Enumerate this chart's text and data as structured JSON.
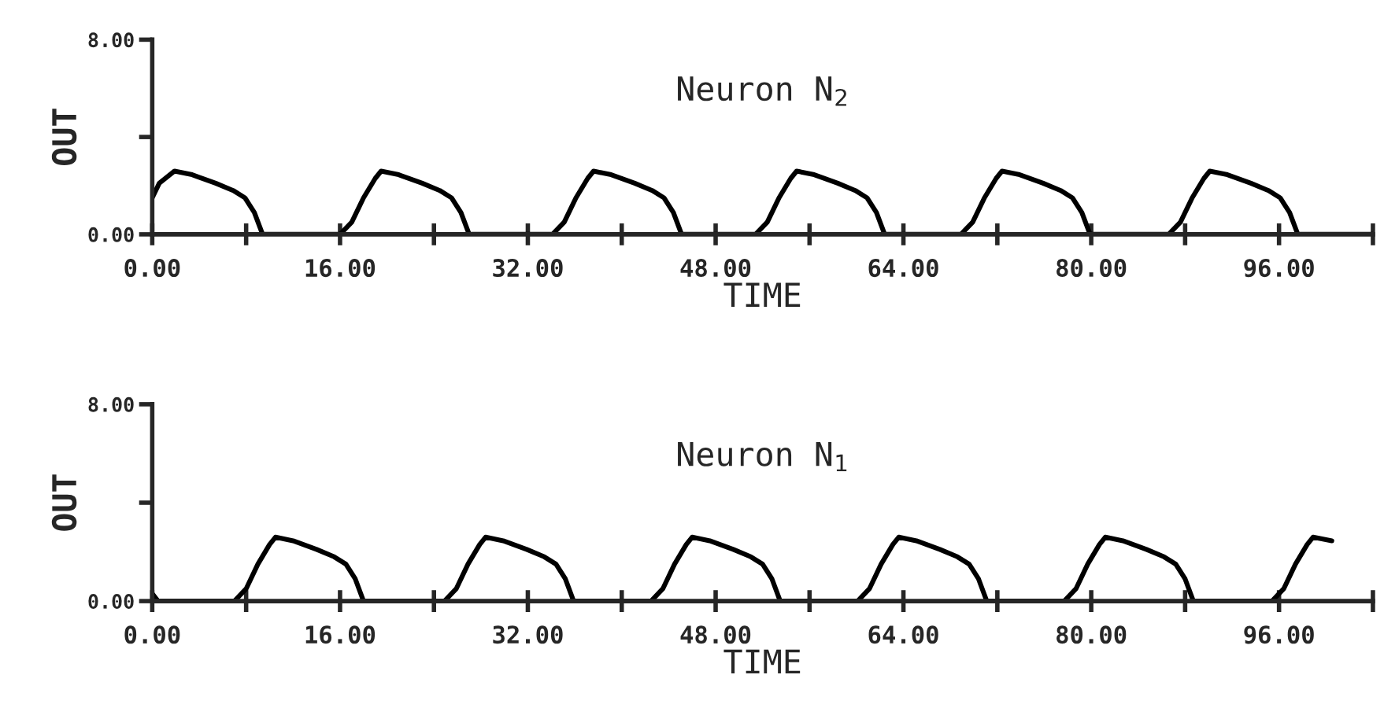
{
  "chart_data": [
    {
      "type": "line",
      "title": "Neuron N$_{2}$",
      "xlabel": "TIME",
      "ylabel": "OUT",
      "xlim": [
        0,
        104
      ],
      "ylim": [
        0,
        8
      ],
      "xticks": [
        {
          "value": 0,
          "label": "0.00"
        },
        {
          "value": 8,
          "label": null
        },
        {
          "value": 16,
          "label": "16.00"
        },
        {
          "value": 24,
          "label": null
        },
        {
          "value": 32,
          "label": "32.00"
        },
        {
          "value": 40,
          "label": null
        },
        {
          "value": 48,
          "label": "48.00"
        },
        {
          "value": 56,
          "label": null
        },
        {
          "value": 64,
          "label": "64.00"
        },
        {
          "value": 72,
          "label": null
        },
        {
          "value": 80,
          "label": "80.00"
        },
        {
          "value": 88,
          "label": null
        },
        {
          "value": 96,
          "label": "96.00"
        },
        {
          "value": 104,
          "label": null
        }
      ],
      "yticks": [
        {
          "value": 0,
          "label": "0.00"
        },
        {
          "value": 4,
          "label": null
        },
        {
          "value": 8,
          "label": "8.00"
        }
      ],
      "grid": false,
      "legend": false,
      "series": [
        {
          "color": "#000000",
          "x": [
            0,
            0.6,
            1.9,
            3.4,
            5.4,
            6.9,
            7.9,
            8.7,
            9.4,
            16,
            17,
            18,
            19,
            19.5,
            21,
            23,
            24.5,
            25.5,
            26.3,
            27,
            34.1,
            35.1,
            36.1,
            37.1,
            37.6,
            39.1,
            41.1,
            42.6,
            43.6,
            44.4,
            45.1,
            51.4,
            52.4,
            53.4,
            54.4,
            54.9,
            56.4,
            58.4,
            59.9,
            60.9,
            61.7,
            62.4,
            68.9,
            69.9,
            70.9,
            71.9,
            72.4,
            73.9,
            75.9,
            77.4,
            78.4,
            79.2,
            79.9,
            86.6,
            87.6,
            88.6,
            89.6,
            90.1,
            91.6,
            93.6,
            95.1,
            96.1,
            96.9,
            97.6,
            104
          ],
          "values": [
            1.5,
            2.1,
            2.6,
            2.45,
            2.1,
            1.8,
            1.5,
            0.9,
            0,
            0,
            0.5,
            1.5,
            2.3,
            2.6,
            2.45,
            2.1,
            1.8,
            1.5,
            0.9,
            0,
            0,
            0.5,
            1.5,
            2.3,
            2.6,
            2.45,
            2.1,
            1.8,
            1.5,
            0.9,
            0,
            0,
            0.5,
            1.5,
            2.3,
            2.6,
            2.45,
            2.1,
            1.8,
            1.5,
            0.9,
            0,
            0,
            0.5,
            1.5,
            2.3,
            2.6,
            2.45,
            2.1,
            1.8,
            1.5,
            0.9,
            0,
            0,
            0.5,
            1.5,
            2.3,
            2.6,
            2.45,
            2.1,
            1.8,
            1.5,
            0.9,
            0,
            0
          ]
        }
      ]
    },
    {
      "type": "line",
      "title": "Neuron N$_{1}$",
      "xlabel": "TIME",
      "ylabel": "OUT",
      "xlim": [
        0,
        104
      ],
      "ylim": [
        0,
        8
      ],
      "xticks": [
        {
          "value": 0,
          "label": "0.00"
        },
        {
          "value": 8,
          "label": null
        },
        {
          "value": 16,
          "label": "16.00"
        },
        {
          "value": 24,
          "label": null
        },
        {
          "value": 32,
          "label": "32.00"
        },
        {
          "value": 40,
          "label": null
        },
        {
          "value": 48,
          "label": "48.00"
        },
        {
          "value": 56,
          "label": null
        },
        {
          "value": 64,
          "label": "64.00"
        },
        {
          "value": 72,
          "label": null
        },
        {
          "value": 80,
          "label": "80.00"
        },
        {
          "value": 88,
          "label": null
        },
        {
          "value": 96,
          "label": "96.00"
        },
        {
          "value": 104,
          "label": null
        }
      ],
      "yticks": [
        {
          "value": 0,
          "label": "0.00"
        },
        {
          "value": 4,
          "label": null
        },
        {
          "value": 8,
          "label": "8.00"
        }
      ],
      "grid": false,
      "legend": false,
      "series": [
        {
          "color": "#000000",
          "x": [
            0,
            0.5,
            7,
            8,
            9,
            10,
            10.5,
            12,
            14,
            15.5,
            16.5,
            17.3,
            18,
            24.9,
            25.9,
            26.9,
            27.9,
            28.4,
            29.9,
            31.9,
            33.4,
            34.4,
            35.2,
            35.9,
            42.5,
            43.5,
            44.5,
            45.5,
            46,
            47.5,
            49.5,
            51,
            52,
            52.8,
            53.5,
            60.1,
            61.1,
            62.1,
            63.1,
            63.6,
            65.1,
            67.1,
            68.6,
            69.6,
            70.4,
            71.1,
            77.7,
            78.7,
            79.7,
            80.7,
            81.2,
            82.7,
            84.7,
            86.2,
            87.2,
            88,
            88.7,
            95.4,
            96.4,
            97.4,
            98.4,
            98.9,
            100.5
          ],
          "values": [
            0.3,
            0,
            0,
            0.5,
            1.5,
            2.3,
            2.6,
            2.45,
            2.1,
            1.8,
            1.5,
            0.9,
            0,
            0,
            0.5,
            1.5,
            2.3,
            2.6,
            2.45,
            2.1,
            1.8,
            1.5,
            0.9,
            0,
            0,
            0.5,
            1.5,
            2.3,
            2.6,
            2.45,
            2.1,
            1.8,
            1.5,
            0.9,
            0,
            0,
            0.5,
            1.5,
            2.3,
            2.6,
            2.45,
            2.1,
            1.8,
            1.5,
            0.9,
            0,
            0,
            0.5,
            1.5,
            2.3,
            2.6,
            2.45,
            2.1,
            1.8,
            1.5,
            0.9,
            0,
            0,
            0.5,
            1.5,
            2.3,
            2.6,
            2.45
          ]
        }
      ]
    }
  ]
}
